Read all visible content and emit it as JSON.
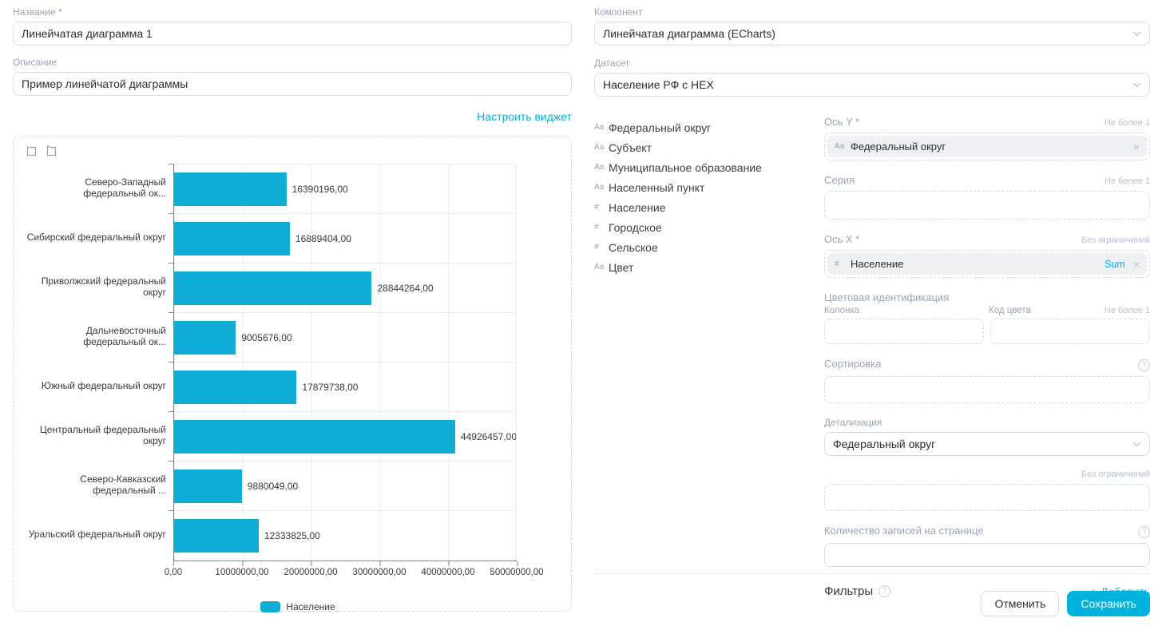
{
  "colors": {
    "accent": "#00b3de",
    "bar": "#0fadd6"
  },
  "form": {
    "name_label": "Название *",
    "name_value": "Линейчатая диаграмма 1",
    "description_label": "Описание",
    "description_value": "Пример линейчатой диаграммы",
    "configure_widget_link": "Настроить виджет"
  },
  "chart_data": {
    "type": "bar",
    "orientation": "horizontal",
    "categories": [
      "Северо-Западный федеральный ок...",
      "Сибирский федеральный округ",
      "Приволжский федеральный округ",
      "Дальневосточный федеральный ок...",
      "Южный федеральный округ",
      "Центральный федеральный округ",
      "Северо-Кавказский федеральный ...",
      "Уральский федеральный округ"
    ],
    "values": [
      16390196,
      16889404,
      28844264,
      9005676,
      17879738,
      44926457,
      9880049,
      12333825
    ],
    "value_labels": [
      "16390196,00",
      "16889404,00",
      "28844264,00",
      "9005676,00",
      "17879738,00",
      "44926457,00",
      "9880049,00",
      "12333825,00"
    ],
    "x_ticks": [
      "0,00",
      "10000000,00",
      "20000000,00",
      "30000000,00",
      "40000000,00",
      "50000000,00"
    ],
    "xlim": [
      0,
      50000000
    ],
    "grid": true,
    "legend": "Население",
    "legend_position": "bottom"
  },
  "component": {
    "label": "Компонент",
    "value": "Линейчатая диаграмма (ECharts)"
  },
  "dataset": {
    "label": "Датасет",
    "value": "Население РФ с HEX"
  },
  "fields": [
    {
      "icon": "Аа",
      "name": "Федеральный округ"
    },
    {
      "icon": "Аа",
      "name": "Субъект"
    },
    {
      "icon": "Аа",
      "name": "Муниципальное образование"
    },
    {
      "icon": "Аа",
      "name": "Населенный пункт"
    },
    {
      "icon": "#",
      "name": "Население"
    },
    {
      "icon": "#",
      "name": "Городское"
    },
    {
      "icon": "#",
      "name": "Сельское"
    },
    {
      "icon": "Аа",
      "name": "Цвет"
    }
  ],
  "config": {
    "axis_y": {
      "label": "Ось Y *",
      "limit": "Не более 1",
      "chip_icon": "Аа",
      "chip_text": "Федеральный округ"
    },
    "series": {
      "label": "Серия",
      "limit": "Не более 1"
    },
    "axis_x": {
      "label": "Ось X *",
      "limit": "Без ограничений",
      "chip_icon": "#",
      "chip_text": "Население",
      "agg": "Sum"
    },
    "color_ident": {
      "label": "Цветовая идентификация",
      "col1": "Колонка",
      "col2": "Код цвета",
      "limit": "Не более 1"
    },
    "sorting": {
      "label": "Сортировка"
    },
    "detail": {
      "label": "Детализация",
      "value": "Федеральный округ"
    },
    "extra_zone": {
      "limit": "Без ограничений"
    },
    "page_size": {
      "label": "Количество записей на странице"
    },
    "filters": {
      "label": "Фильтры",
      "add": "Добавить"
    }
  },
  "footer": {
    "cancel": "Отменить",
    "save": "Сохранить"
  }
}
